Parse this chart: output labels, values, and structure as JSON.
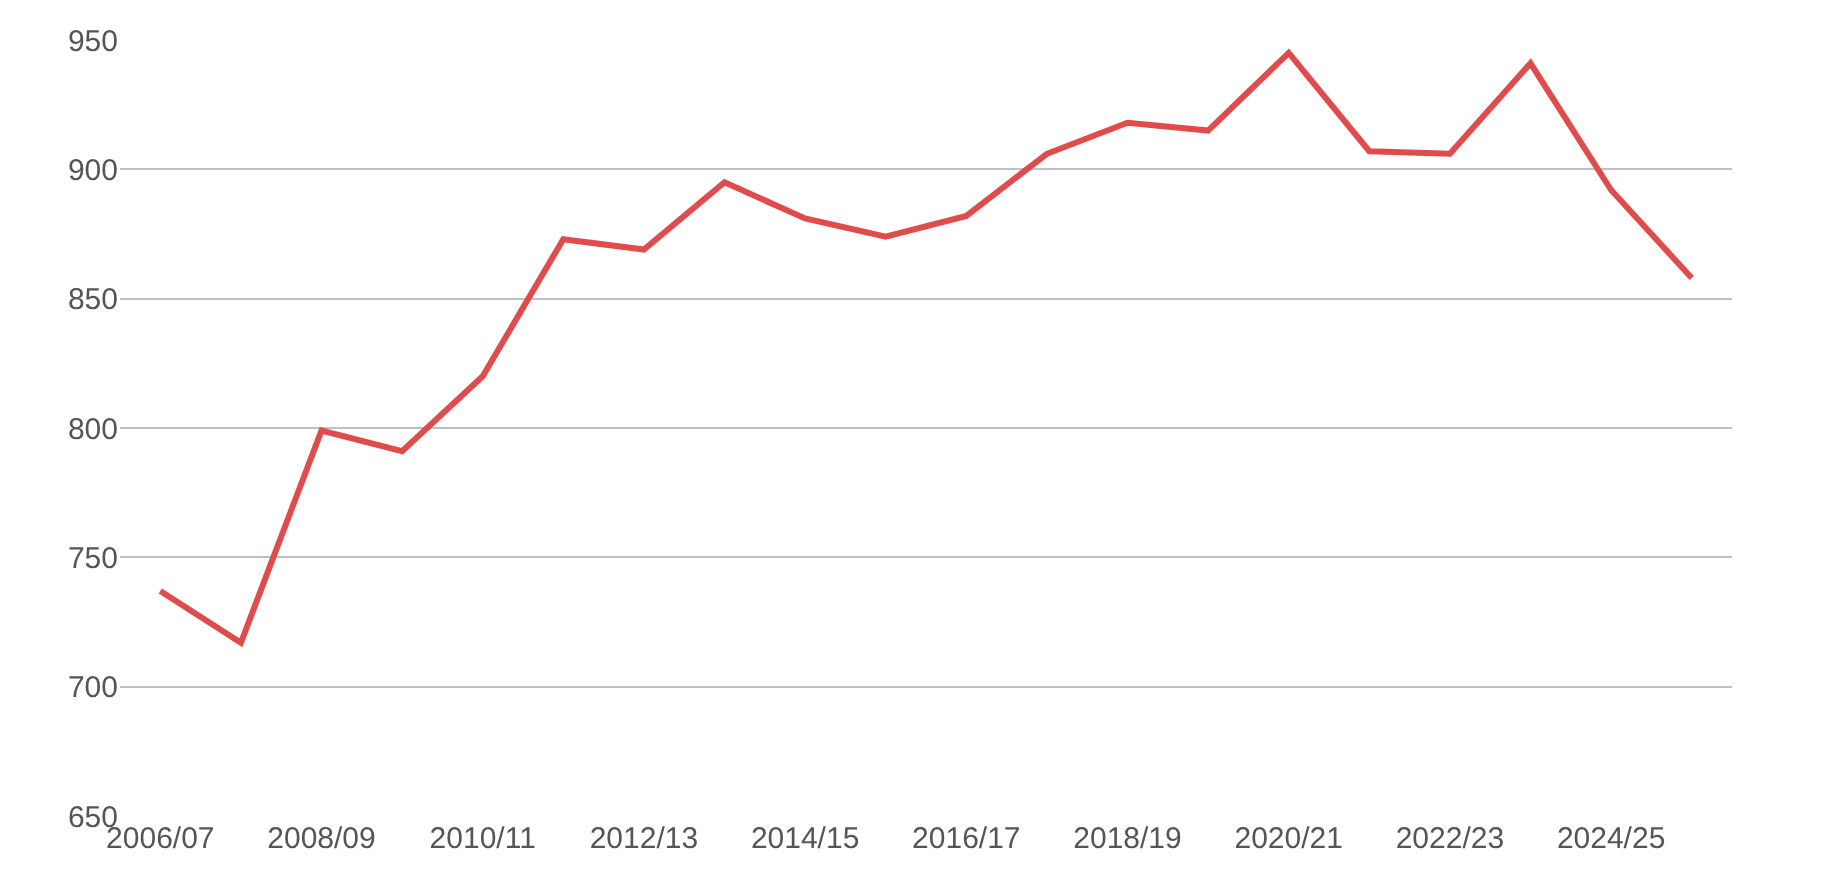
{
  "chart_data": {
    "type": "line",
    "categories": [
      "2006/07",
      null,
      "2008/09",
      null,
      "2010/11",
      null,
      "2012/13",
      null,
      "2014/15",
      null,
      "2016/17",
      null,
      "2018/19",
      null,
      "2020/21",
      null,
      "2022/23",
      null,
      "2024/25",
      null
    ],
    "series": [
      {
        "color": "#e04b4b",
        "values": [
          737,
          717,
          799,
          791,
          820,
          873,
          869,
          895,
          881,
          874,
          882,
          906,
          918,
          915,
          945,
          907,
          906,
          941,
          892,
          858
        ]
      }
    ],
    "ylim": [
      650,
      950
    ],
    "yticks": [
      650,
      700,
      750,
      800,
      850,
      900,
      950
    ],
    "grid": "y",
    "legend": false,
    "marker": "none",
    "line_style": "solid"
  }
}
